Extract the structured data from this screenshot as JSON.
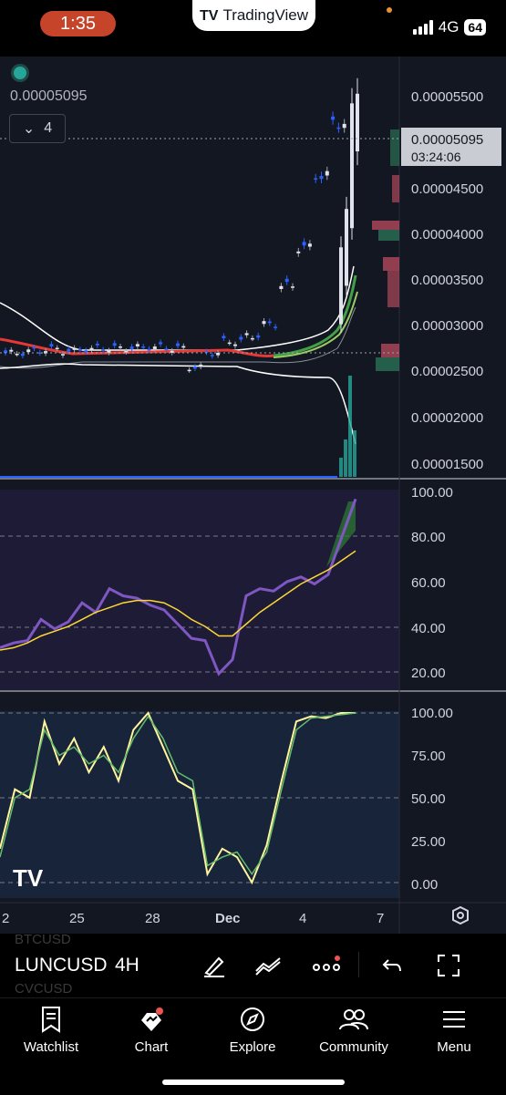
{
  "status_bar": {
    "time": "1:35",
    "app_badge": "TradingView",
    "network": "4G",
    "battery": "64"
  },
  "chart": {
    "current_price": "0.00005095",
    "countdown": "03:24:06",
    "indicators_count": "4",
    "price_axis_labels": [
      "0.00005500",
      "0.00004500",
      "0.00004000",
      "0.00003500",
      "0.00003000",
      "0.00002500",
      "0.00002000",
      "0.00001500"
    ],
    "rsi_axis_labels": [
      "100.00",
      "80.00",
      "60.00",
      "40.00",
      "20.00"
    ],
    "stoch_axis_labels": [
      "100.00",
      "75.00",
      "50.00",
      "25.00",
      "0.00"
    ],
    "time_axis_labels": [
      "2",
      "25",
      "28",
      "Dec",
      "4",
      "7"
    ],
    "watermark": "TV"
  },
  "chart_data": [
    {
      "type": "candlestick",
      "title": "",
      "ylim": [
        1.4e-05,
        5.7e-05
      ],
      "x_ticks": [
        "2",
        "25",
        "28",
        "Dec",
        "4",
        "7"
      ],
      "approx_close": [
        2.7e-05,
        2.72e-05,
        2.74e-05,
        2.72e-05,
        2.74e-05,
        2.75e-05,
        2.75e-05,
        2.76e-05,
        2.76e-05,
        2.75e-05,
        2.55e-05,
        2.7e-05,
        2.82e-05,
        2.88e-05,
        3e-05,
        3.4e-05,
        3.8e-05,
        4.55e-05,
        5.1e-05
      ],
      "current_price": 5.095e-05
    },
    {
      "type": "line",
      "title": "",
      "ylim": [
        15,
        100
      ],
      "levels": [
        80,
        40,
        20
      ],
      "series": [
        {
          "values": [
            33,
            35,
            36,
            45,
            41,
            44,
            52,
            48,
            58,
            55,
            54,
            51,
            49,
            43,
            37,
            36,
            22,
            28,
            55,
            58,
            57,
            61,
            63,
            60,
            64,
            80,
            96
          ]
        },
        {
          "values": [
            32,
            33,
            35,
            38,
            40,
            42,
            45,
            48,
            50,
            52,
            53,
            53,
            52,
            49,
            45,
            42,
            38,
            38,
            43,
            48,
            52,
            56,
            60,
            63,
            66,
            70,
            74
          ]
        }
      ]
    },
    {
      "type": "line",
      "title": "",
      "ylim": [
        -5,
        105
      ],
      "levels": [
        100,
        50,
        0
      ],
      "series": [
        {
          "values": [
            20,
            55,
            50,
            95,
            70,
            85,
            65,
            80,
            60,
            90,
            100,
            80,
            60,
            55,
            5,
            20,
            15,
            0,
            22,
            60,
            95,
            98,
            97,
            100,
            100
          ]
        },
        {
          "values": [
            15,
            50,
            55,
            90,
            75,
            80,
            70,
            75,
            65,
            85,
            98,
            85,
            65,
            60,
            10,
            15,
            18,
            5,
            18,
            55,
            90,
            97,
            98,
            99,
            100
          ]
        }
      ]
    }
  ],
  "toolbar": {
    "symbol": "LUNCUSD",
    "interval": "4H",
    "ghost_symbols": [
      "BTCUSD",
      "CVCUSD"
    ]
  },
  "bottom_nav": {
    "items": [
      {
        "label": "Watchlist"
      },
      {
        "label": "Chart"
      },
      {
        "label": "Explore"
      },
      {
        "label": "Community"
      },
      {
        "label": "Menu"
      }
    ]
  }
}
